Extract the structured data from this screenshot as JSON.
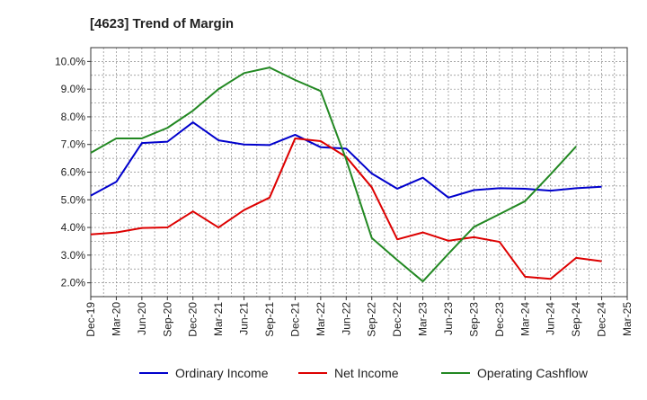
{
  "chart_data": {
    "type": "line",
    "title": "[4623]  Trend of Margin",
    "categories": [
      "Dec-19",
      "Mar-20",
      "Jun-20",
      "Sep-20",
      "Dec-20",
      "Mar-21",
      "Jun-21",
      "Sep-21",
      "Dec-21",
      "Mar-22",
      "Jun-22",
      "Sep-22",
      "Dec-22",
      "Mar-23",
      "Jun-23",
      "Sep-23",
      "Dec-23",
      "Mar-24",
      "Jun-24",
      "Sep-24",
      "Dec-24",
      "Mar-25"
    ],
    "y_ticks": [
      "2.0%",
      "3.0%",
      "4.0%",
      "5.0%",
      "6.0%",
      "7.0%",
      "8.0%",
      "9.0%",
      "10.0%"
    ],
    "ylim": [
      1.5,
      10.5
    ],
    "grid": true,
    "legend_position": "bottom",
    "series": [
      {
        "name": "Ordinary Income",
        "color": "#0000cc",
        "values": [
          5.15,
          5.65,
          7.05,
          7.1,
          7.8,
          7.15,
          7.0,
          6.98,
          7.35,
          6.9,
          6.85,
          5.95,
          5.4,
          5.8,
          5.08,
          5.35,
          5.42,
          5.4,
          5.33,
          5.42,
          5.47,
          null
        ]
      },
      {
        "name": "Net Income",
        "color": "#dd0000",
        "values": [
          3.75,
          3.82,
          3.98,
          4.0,
          4.58,
          4.0,
          4.63,
          5.08,
          7.22,
          7.12,
          6.55,
          5.45,
          3.57,
          3.82,
          3.52,
          3.65,
          3.48,
          2.22,
          2.14,
          2.9,
          2.78,
          null
        ]
      },
      {
        "name": "Operating Cashflow",
        "color": "#228822",
        "values": [
          6.7,
          7.22,
          7.22,
          7.6,
          8.22,
          9.0,
          9.58,
          9.78,
          9.33,
          8.93,
          6.45,
          3.62,
          2.82,
          2.05,
          3.05,
          4.02,
          4.48,
          4.95,
          5.92,
          6.93,
          null,
          null
        ]
      }
    ]
  }
}
